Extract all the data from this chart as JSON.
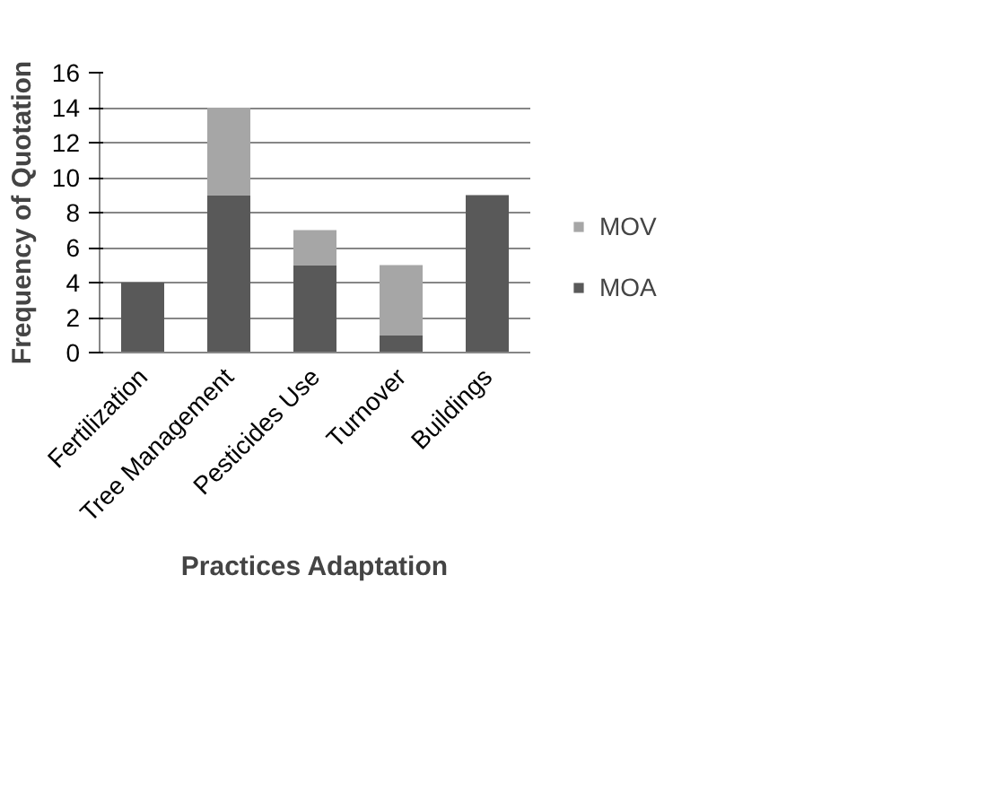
{
  "chart_data": {
    "type": "bar",
    "stacked": true,
    "xlabel": "Practices Adaptation",
    "ylabel": "Frequency of Quotation",
    "categories": [
      "Fertilization",
      "Tree Management",
      "Pesticides Use",
      "Turnover",
      "Buildings"
    ],
    "series": [
      {
        "name": "MOA",
        "color": "#595959",
        "values": [
          4,
          9,
          5,
          1,
          9
        ]
      },
      {
        "name": "MOV",
        "color": "#a6a6a6",
        "values": [
          0,
          5,
          2,
          4,
          0
        ]
      }
    ],
    "ylim": [
      0,
      16
    ],
    "yticks": [
      0,
      2,
      4,
      6,
      8,
      10,
      12,
      14,
      16
    ],
    "grid": "y",
    "legend": "right"
  }
}
